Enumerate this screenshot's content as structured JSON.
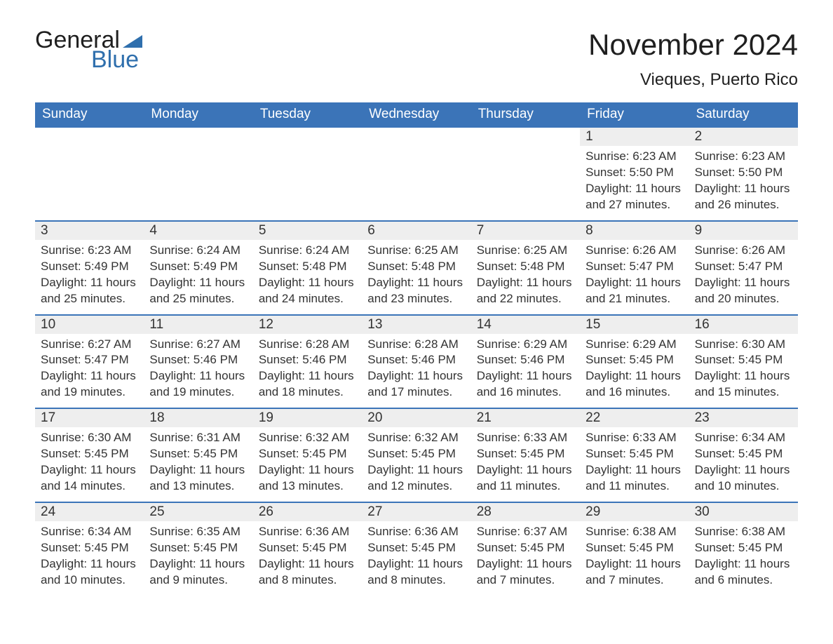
{
  "logo": {
    "word1": "General",
    "word2": "Blue"
  },
  "title": "November 2024",
  "location": "Vieques, Puerto Rico",
  "colors": {
    "header_bg": "#3b74b8",
    "header_text": "#ffffff",
    "daynum_bg": "#eeeeee",
    "border": "#3b74b8",
    "logo_blue": "#2f6fad"
  },
  "days_of_week": [
    "Sunday",
    "Monday",
    "Tuesday",
    "Wednesday",
    "Thursday",
    "Friday",
    "Saturday"
  ],
  "labels": {
    "sunrise": "Sunrise:",
    "sunset": "Sunset:",
    "daylight": "Daylight:"
  },
  "leading_blanks": 5,
  "days": [
    {
      "n": 1,
      "sunrise": "6:23 AM",
      "sunset": "5:50 PM",
      "daylight": "11 hours and 27 minutes."
    },
    {
      "n": 2,
      "sunrise": "6:23 AM",
      "sunset": "5:50 PM",
      "daylight": "11 hours and 26 minutes."
    },
    {
      "n": 3,
      "sunrise": "6:23 AM",
      "sunset": "5:49 PM",
      "daylight": "11 hours and 25 minutes."
    },
    {
      "n": 4,
      "sunrise": "6:24 AM",
      "sunset": "5:49 PM",
      "daylight": "11 hours and 25 minutes."
    },
    {
      "n": 5,
      "sunrise": "6:24 AM",
      "sunset": "5:48 PM",
      "daylight": "11 hours and 24 minutes."
    },
    {
      "n": 6,
      "sunrise": "6:25 AM",
      "sunset": "5:48 PM",
      "daylight": "11 hours and 23 minutes."
    },
    {
      "n": 7,
      "sunrise": "6:25 AM",
      "sunset": "5:48 PM",
      "daylight": "11 hours and 22 minutes."
    },
    {
      "n": 8,
      "sunrise": "6:26 AM",
      "sunset": "5:47 PM",
      "daylight": "11 hours and 21 minutes."
    },
    {
      "n": 9,
      "sunrise": "6:26 AM",
      "sunset": "5:47 PM",
      "daylight": "11 hours and 20 minutes."
    },
    {
      "n": 10,
      "sunrise": "6:27 AM",
      "sunset": "5:47 PM",
      "daylight": "11 hours and 19 minutes."
    },
    {
      "n": 11,
      "sunrise": "6:27 AM",
      "sunset": "5:46 PM",
      "daylight": "11 hours and 19 minutes."
    },
    {
      "n": 12,
      "sunrise": "6:28 AM",
      "sunset": "5:46 PM",
      "daylight": "11 hours and 18 minutes."
    },
    {
      "n": 13,
      "sunrise": "6:28 AM",
      "sunset": "5:46 PM",
      "daylight": "11 hours and 17 minutes."
    },
    {
      "n": 14,
      "sunrise": "6:29 AM",
      "sunset": "5:46 PM",
      "daylight": "11 hours and 16 minutes."
    },
    {
      "n": 15,
      "sunrise": "6:29 AM",
      "sunset": "5:45 PM",
      "daylight": "11 hours and 16 minutes."
    },
    {
      "n": 16,
      "sunrise": "6:30 AM",
      "sunset": "5:45 PM",
      "daylight": "11 hours and 15 minutes."
    },
    {
      "n": 17,
      "sunrise": "6:30 AM",
      "sunset": "5:45 PM",
      "daylight": "11 hours and 14 minutes."
    },
    {
      "n": 18,
      "sunrise": "6:31 AM",
      "sunset": "5:45 PM",
      "daylight": "11 hours and 13 minutes."
    },
    {
      "n": 19,
      "sunrise": "6:32 AM",
      "sunset": "5:45 PM",
      "daylight": "11 hours and 13 minutes."
    },
    {
      "n": 20,
      "sunrise": "6:32 AM",
      "sunset": "5:45 PM",
      "daylight": "11 hours and 12 minutes."
    },
    {
      "n": 21,
      "sunrise": "6:33 AM",
      "sunset": "5:45 PM",
      "daylight": "11 hours and 11 minutes."
    },
    {
      "n": 22,
      "sunrise": "6:33 AM",
      "sunset": "5:45 PM",
      "daylight": "11 hours and 11 minutes."
    },
    {
      "n": 23,
      "sunrise": "6:34 AM",
      "sunset": "5:45 PM",
      "daylight": "11 hours and 10 minutes."
    },
    {
      "n": 24,
      "sunrise": "6:34 AM",
      "sunset": "5:45 PM",
      "daylight": "11 hours and 10 minutes."
    },
    {
      "n": 25,
      "sunrise": "6:35 AM",
      "sunset": "5:45 PM",
      "daylight": "11 hours and 9 minutes."
    },
    {
      "n": 26,
      "sunrise": "6:36 AM",
      "sunset": "5:45 PM",
      "daylight": "11 hours and 8 minutes."
    },
    {
      "n": 27,
      "sunrise": "6:36 AM",
      "sunset": "5:45 PM",
      "daylight": "11 hours and 8 minutes."
    },
    {
      "n": 28,
      "sunrise": "6:37 AM",
      "sunset": "5:45 PM",
      "daylight": "11 hours and 7 minutes."
    },
    {
      "n": 29,
      "sunrise": "6:38 AM",
      "sunset": "5:45 PM",
      "daylight": "11 hours and 7 minutes."
    },
    {
      "n": 30,
      "sunrise": "6:38 AM",
      "sunset": "5:45 PM",
      "daylight": "11 hours and 6 minutes."
    }
  ]
}
